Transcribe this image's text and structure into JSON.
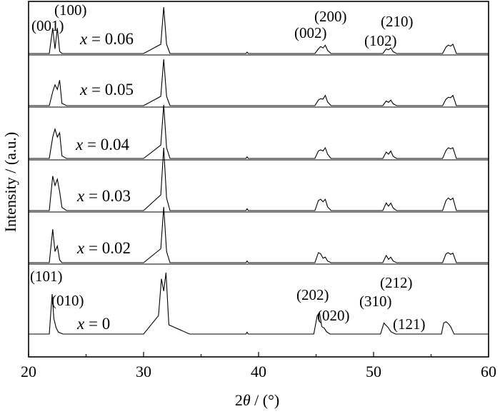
{
  "chart_data": {
    "type": "line",
    "title": "",
    "xlabel": "2θ / (°)",
    "xlabel_prefix": "2",
    "xlabel_symbol": "θ",
    "xlabel_suffix": " / (°)",
    "ylabel": "Intensity / (a.u.)",
    "xlim": [
      20,
      60
    ],
    "xticks": [
      20,
      30,
      40,
      50,
      60
    ],
    "yticks_shown": false,
    "grid": false,
    "series": [
      {
        "name": "x = 0.06",
        "var": "x",
        "value_text": " = 0.06",
        "x": [
          20.0,
          21.8,
          22.1,
          22.3,
          22.5,
          22.7,
          22.9,
          23.3,
          30.0,
          31.5,
          31.75,
          32.0,
          32.3,
          34.0,
          38.9,
          39.0,
          39.1,
          44.9,
          45.2,
          45.4,
          45.6,
          45.8,
          46.0,
          46.3,
          50.8,
          51.1,
          51.3,
          51.5,
          51.7,
          52.0,
          56.0,
          56.3,
          56.5,
          56.7,
          56.9,
          57.2,
          60.0
        ],
        "y": [
          0.0,
          0.0,
          0.55,
          0.1,
          0.55,
          0.05,
          0.0,
          0.0,
          0.0,
          0.2,
          1.0,
          0.2,
          0.0,
          0.0,
          0.0,
          0.03,
          0.0,
          0.0,
          0.1,
          0.15,
          0.12,
          0.18,
          0.07,
          0.0,
          0.0,
          0.1,
          0.08,
          0.12,
          0.04,
          0.0,
          0.0,
          0.14,
          0.18,
          0.16,
          0.2,
          0.0,
          0.0
        ],
        "annotations": [
          "(001)",
          "(100)",
          "(002)",
          "(200)",
          "(102)",
          "(210)"
        ]
      },
      {
        "name": "x = 0.05",
        "var": "x",
        "value_text": " = 0.05",
        "x": [
          20.0,
          21.8,
          22.1,
          22.3,
          22.5,
          22.7,
          22.9,
          23.3,
          30.0,
          31.5,
          31.75,
          32.0,
          32.3,
          34.0,
          44.9,
          45.2,
          45.4,
          45.6,
          45.8,
          46.0,
          46.3,
          50.8,
          51.1,
          51.3,
          51.5,
          51.7,
          52.0,
          56.0,
          56.3,
          56.5,
          56.7,
          56.9,
          57.2,
          60.0
        ],
        "y": [
          0.0,
          0.0,
          0.3,
          0.45,
          0.35,
          0.55,
          0.05,
          0.0,
          0.0,
          0.2,
          1.0,
          0.2,
          0.0,
          0.0,
          0.0,
          0.12,
          0.15,
          0.14,
          0.22,
          0.08,
          0.0,
          0.0,
          0.1,
          0.07,
          0.12,
          0.04,
          0.0,
          0.0,
          0.14,
          0.18,
          0.17,
          0.22,
          0.0,
          0.0
        ]
      },
      {
        "name": "x = 0.04",
        "var": "x",
        "value_text": " = 0.04",
        "x": [
          20.0,
          21.8,
          22.1,
          22.3,
          22.5,
          22.7,
          22.9,
          23.3,
          30.0,
          31.5,
          31.75,
          32.0,
          32.3,
          34.0,
          38.9,
          39.0,
          39.1,
          44.9,
          45.2,
          45.4,
          45.6,
          45.8,
          46.0,
          46.3,
          50.8,
          51.1,
          51.3,
          51.5,
          51.7,
          52.0,
          56.0,
          56.3,
          56.5,
          56.7,
          56.9,
          57.2,
          60.0
        ],
        "y": [
          0.0,
          0.0,
          0.4,
          0.55,
          0.4,
          0.48,
          0.05,
          0.0,
          0.0,
          0.25,
          1.0,
          0.2,
          0.0,
          0.0,
          0.0,
          0.03,
          0.0,
          0.0,
          0.14,
          0.16,
          0.14,
          0.2,
          0.08,
          0.0,
          0.0,
          0.12,
          0.08,
          0.14,
          0.04,
          0.0,
          0.0,
          0.15,
          0.2,
          0.18,
          0.2,
          0.0,
          0.0
        ]
      },
      {
        "name": "x = 0.03",
        "var": "x",
        "value_text": " = 0.03",
        "x": [
          20.0,
          21.8,
          22.1,
          22.3,
          22.5,
          22.7,
          22.9,
          23.3,
          30.0,
          31.5,
          31.75,
          32.0,
          32.3,
          34.0,
          38.9,
          39.0,
          39.1,
          44.9,
          45.2,
          45.4,
          45.6,
          45.8,
          46.0,
          46.3,
          50.8,
          51.1,
          51.3,
          51.5,
          51.7,
          52.0,
          56.0,
          56.3,
          56.5,
          56.7,
          56.9,
          57.2,
          60.0
        ],
        "y": [
          0.0,
          0.0,
          0.55,
          0.4,
          0.5,
          0.3,
          0.05,
          0.0,
          0.0,
          0.25,
          1.0,
          0.2,
          0.0,
          0.0,
          0.0,
          0.03,
          0.0,
          0.0,
          0.16,
          0.18,
          0.14,
          0.18,
          0.06,
          0.0,
          0.0,
          0.12,
          0.07,
          0.12,
          0.04,
          0.0,
          0.0,
          0.16,
          0.2,
          0.17,
          0.2,
          0.0,
          0.0
        ]
      },
      {
        "name": "x = 0.02",
        "var": "x",
        "value_text": " = 0.02",
        "x": [
          20.0,
          21.8,
          22.1,
          22.3,
          22.5,
          22.7,
          22.9,
          23.3,
          30.0,
          31.5,
          31.75,
          32.0,
          32.3,
          34.0,
          38.9,
          39.0,
          39.1,
          44.9,
          45.2,
          45.4,
          45.6,
          45.8,
          46.0,
          46.3,
          50.8,
          51.1,
          51.3,
          51.5,
          51.7,
          52.0,
          56.0,
          56.3,
          56.5,
          56.7,
          56.9,
          57.2,
          60.0
        ],
        "y": [
          0.0,
          0.0,
          0.6,
          0.2,
          0.3,
          0.05,
          0.0,
          0.0,
          0.0,
          0.25,
          1.0,
          0.2,
          0.0,
          0.0,
          0.0,
          0.03,
          0.0,
          0.0,
          0.18,
          0.16,
          0.08,
          0.1,
          0.03,
          0.0,
          0.0,
          0.13,
          0.06,
          0.1,
          0.03,
          0.0,
          0.0,
          0.16,
          0.18,
          0.15,
          0.17,
          0.0,
          0.0
        ]
      },
      {
        "name": "x = 0",
        "var": "x",
        "value_text": " = 0",
        "x": [
          20.0,
          21.8,
          22.05,
          22.2,
          22.4,
          22.6,
          23.0,
          30.0,
          31.3,
          31.55,
          31.75,
          31.95,
          32.2,
          34.0,
          38.9,
          39.0,
          39.1,
          44.8,
          45.1,
          45.3,
          45.5,
          45.7,
          45.9,
          46.2,
          50.6,
          50.9,
          51.1,
          51.3,
          51.5,
          51.9,
          55.9,
          56.1,
          56.3,
          56.5,
          56.7,
          57.0,
          60.0
        ],
        "y": [
          0.0,
          0.0,
          0.65,
          0.25,
          0.1,
          0.03,
          0.0,
          0.0,
          0.3,
          0.9,
          0.7,
          1.0,
          0.15,
          0.0,
          0.0,
          0.03,
          0.0,
          0.0,
          0.3,
          0.35,
          0.12,
          0.1,
          0.04,
          0.0,
          0.0,
          0.18,
          0.14,
          0.1,
          0.04,
          0.0,
          0.0,
          0.18,
          0.2,
          0.17,
          0.12,
          0.0,
          0.0
        ],
        "annotations": [
          "(101)",
          "(010)",
          "(202)",
          "(020)",
          "(310)",
          "(212)",
          "(121)"
        ]
      }
    ]
  }
}
